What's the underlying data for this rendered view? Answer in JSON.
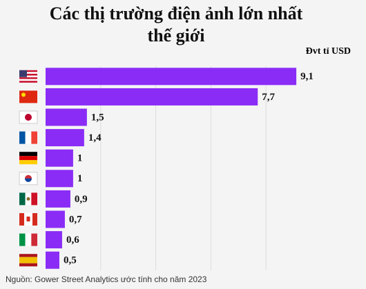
{
  "chart_data": {
    "type": "bar",
    "orientation": "horizontal",
    "title": "Các thị trường điện ảnh lớn nhất thế giới",
    "unit_label": "Đvt tỉ USD",
    "source": "Nguồn: Gower Street Analytics ước tính cho năm 2023",
    "categories": [
      null,
      null,
      null,
      null,
      null,
      null,
      null,
      null,
      null,
      null
    ],
    "values": [
      9.1,
      7.7,
      1.5,
      1.4,
      1,
      1,
      0.9,
      0.7,
      0.6,
      0.5
    ],
    "value_labels": [
      "9,1",
      "7,7",
      "1,5",
      "1,4",
      "1",
      "1",
      "0,9",
      "0,7",
      "0,6",
      "0,5"
    ],
    "color": "#8a2cf6",
    "xlim": [
      0,
      10
    ],
    "xticks": [
      2,
      4,
      6,
      8
    ],
    "grid": true
  }
}
